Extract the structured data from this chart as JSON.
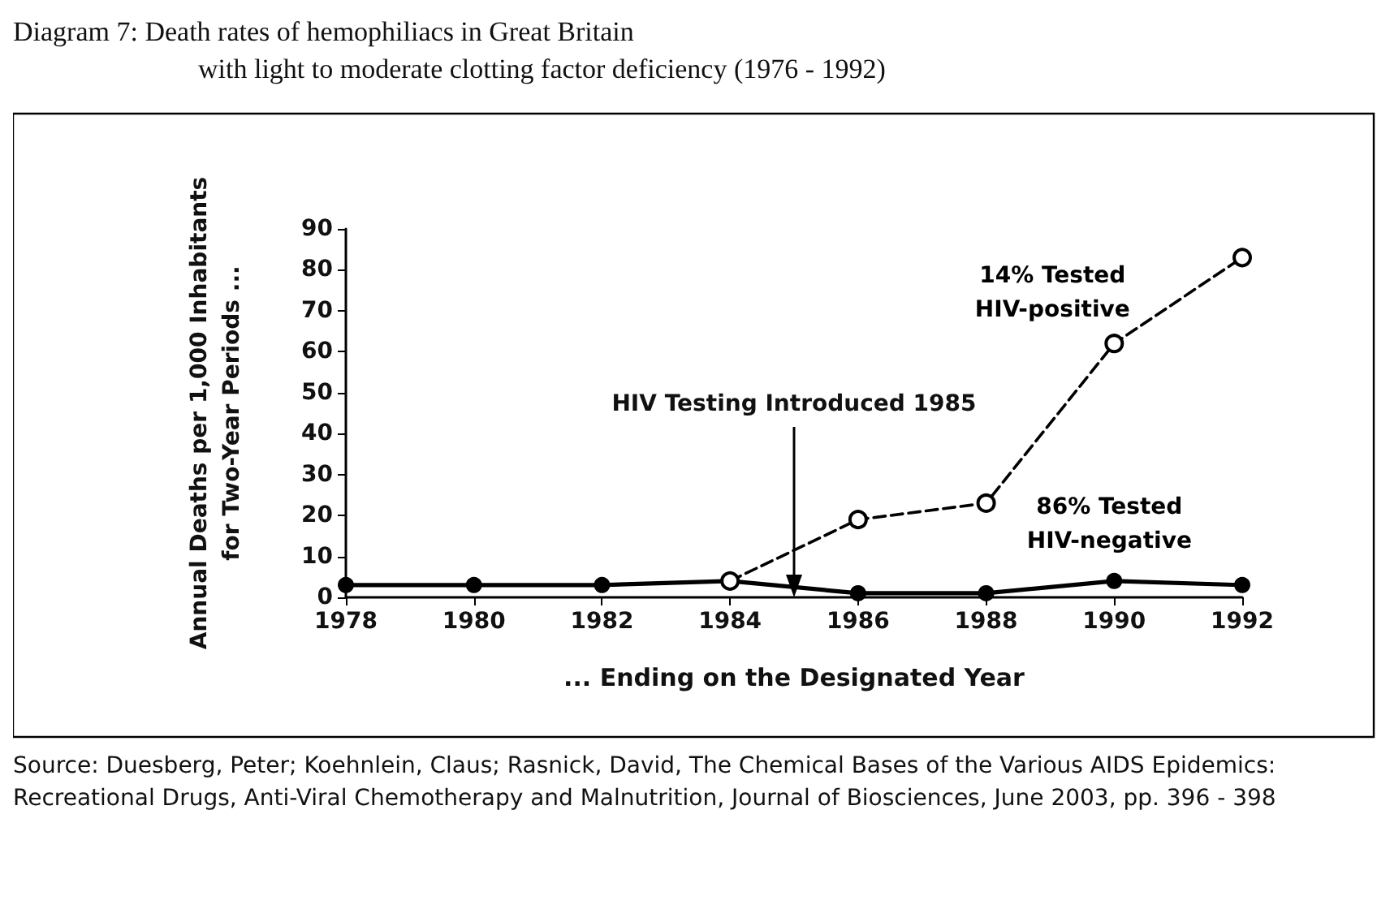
{
  "chart_data": {
    "type": "line",
    "title": "Diagram 7:   Death rates of hemophiliacs in Great Britain",
    "subtitle": "with light to moderate clotting factor deficiency (1976 - 1992)",
    "xlabel": "... Ending on the Designated Year",
    "ylabel": "Annual Deaths per 1,000 Inhabitants\nfor Two-Year Periods ...",
    "x": [
      1978,
      1980,
      1982,
      1984,
      1986,
      1988,
      1990,
      1992
    ],
    "series": [
      {
        "name": "14% Tested\nHIV-positive",
        "color": "#000000",
        "line_style": "dashed",
        "marker": "open circle",
        "values": [
          null,
          null,
          null,
          4,
          19,
          23,
          62,
          83
        ]
      },
      {
        "name": "86% Tested\nHIV-negative",
        "color": "#000000",
        "line_style": "solid",
        "marker": "circle",
        "values": [
          3,
          3,
          3,
          4,
          1,
          1,
          4,
          3
        ]
      }
    ],
    "xlim": [
      1978,
      1992
    ],
    "xticks": [
      1978,
      1980,
      1982,
      1984,
      1986,
      1988,
      1990,
      1992
    ],
    "ylim": [
      0,
      90
    ],
    "yticks": [
      0,
      10,
      20,
      30,
      40,
      50,
      60,
      70,
      80,
      90
    ],
    "grid": false,
    "ref_lines": [
      {
        "axis": "x",
        "value": 1985,
        "label": "HIV Testing Introduced 1985"
      }
    ],
    "annotations": [
      "Source: Duesberg, Peter; Koehnlein, Claus; Rasnick, David, The Chemical Bases of the Various AIDS Epidemics: Recreational Drugs, Anti-Viral Chemotherapy and Malnutrition, Journal of Biosciences, June 2003, pp. 396 - 398"
    ]
  }
}
